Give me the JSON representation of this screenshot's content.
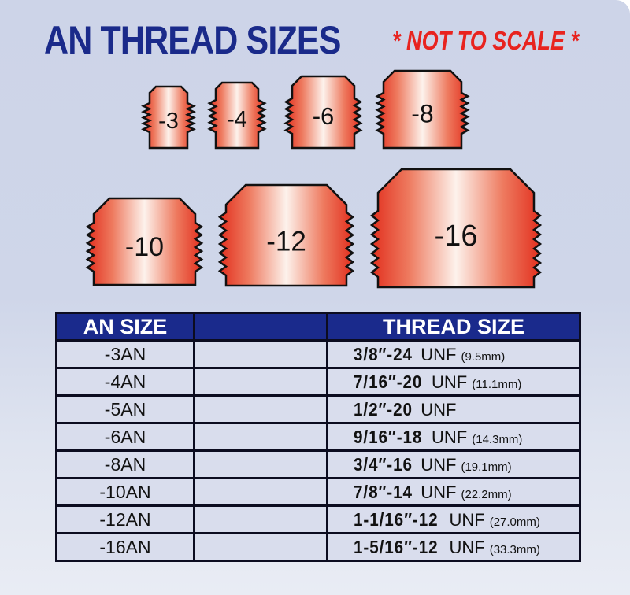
{
  "title": "AN THREAD SIZES",
  "note": "* NOT TO SCALE *",
  "fittings": [
    {
      "label": "-3"
    },
    {
      "label": "-4"
    },
    {
      "label": "-6"
    },
    {
      "label": "-8"
    },
    {
      "label": "-10"
    },
    {
      "label": "-12"
    },
    {
      "label": "-16"
    }
  ],
  "colors": {
    "header": "#1a2a8c",
    "title": "#1a2a8a",
    "note": "#e8231f",
    "fitting": "#e8503a"
  },
  "table": {
    "headers": [
      "AN SIZE",
      "",
      "THREAD SIZE"
    ],
    "rows": [
      {
        "an": "-3AN",
        "thread": "3/8″-24",
        "unf": "UNF",
        "mm": "(9.5mm)"
      },
      {
        "an": "-4AN",
        "thread": "7/16″-20",
        "unf": "UNF",
        "mm": "(11.1mm)"
      },
      {
        "an": "-5AN",
        "thread": "1/2″-20",
        "unf": "UNF",
        "mm": ""
      },
      {
        "an": "-6AN",
        "thread": "9/16″-18",
        "unf": "UNF",
        "mm": "(14.3mm)"
      },
      {
        "an": "-8AN",
        "thread": "3/4″-16",
        "unf": "UNF",
        "mm": "(19.1mm)"
      },
      {
        "an": "-10AN",
        "thread": "7/8″-14",
        "unf": "UNF",
        "mm": "(22.2mm)"
      },
      {
        "an": "-12AN",
        "thread": "1-1/16″-12",
        "unf": "UNF",
        "mm": "(27.0mm)"
      },
      {
        "an": "-16AN",
        "thread": "1-5/16″-12",
        "unf": "UNF",
        "mm": "(33.3mm)"
      }
    ]
  }
}
